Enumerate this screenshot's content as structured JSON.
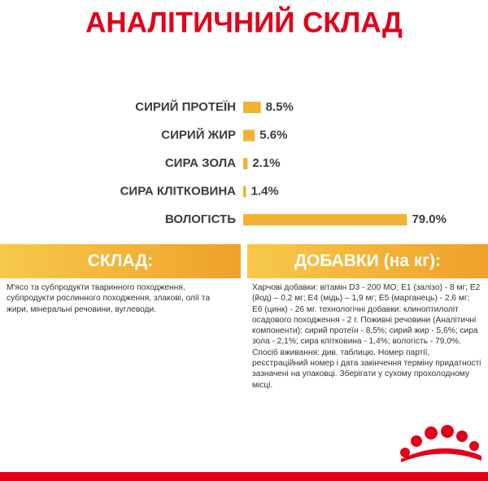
{
  "chart_data": {
    "type": "bar",
    "orientation": "horizontal",
    "title": "АНАЛІТИЧНИЙ СКЛАД",
    "categories": [
      "СИРИЙ ПРОТЕЇН",
      "СИРИЙ ЖИР",
      "СИРА ЗОЛА",
      "СИРА КЛІТКОВИНА",
      "ВОЛОГІСТЬ"
    ],
    "values": [
      8.5,
      5.6,
      2.1,
      1.4,
      79.0
    ],
    "value_labels": [
      "8.5%",
      "5.6%",
      "2.1%",
      "1.4%",
      "79.0%"
    ],
    "color": "#f2b233"
  },
  "composition": {
    "title": "СКЛАД:",
    "text": "М'ясо та субпродукти тваринного походження, субпродукти рослинного походження, злакові, олії та жири, мінеральні речовини, вуглеводи."
  },
  "additives": {
    "title": "ДОБАВКИ (на кг):",
    "text": "Харчові добавки: вітамін D3 - 200 МО; E1 (залізо) - 8 мг; E2 (йод) – 0,2 мг; E4 (мідь) – 1,9 мг; E5 (марганець) - 2,6 мг; E6 (цинк) - 26 мг. технологічні добавки: клиноптилоліт осадового походження - 2 г. Поживні речовини (Аналітичні компоненти): сирий протеїн - 8,5%; сирий жир - 5,6%; сира зола - 2,1%; сира клітковина - 1,4%; вологість - 79,0%. Спосіб вживання: див. таблицю. Номер партії, реєстраційний номер і дата закінчення терміну придатності зазначені на упаковці. Зберігати у сухому прохолодному місці."
  }
}
